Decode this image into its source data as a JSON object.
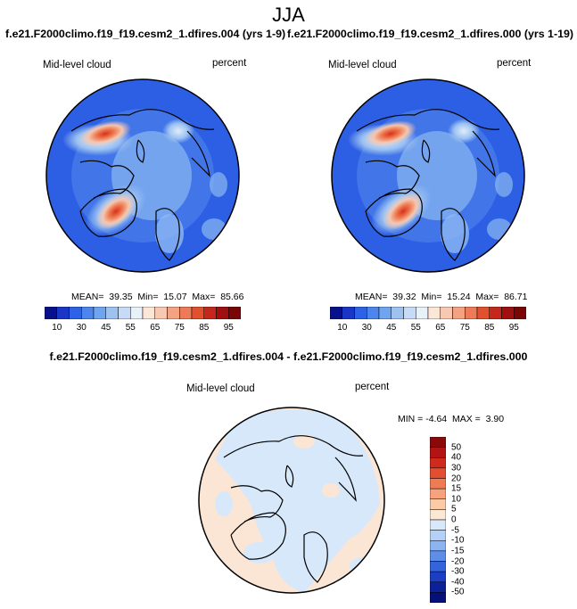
{
  "title": "JJA",
  "panels": {
    "left": {
      "case": "f.e21.F2000climo.f19_f19.cesm2_1.dfires.004 (yrs 1-9)",
      "variable": "Mid-level cloud",
      "units": "percent",
      "stats": "MEAN=  39.35  Min=  15.07  Max=  85.66"
    },
    "right": {
      "case": "f.e21.F2000climo.f19_f19.cesm2_1.dfires.000 (yrs 1-19)",
      "variable": "Mid-level cloud",
      "units": "percent",
      "stats": "MEAN=  39.32  Min=  15.24  Max=  86.71"
    },
    "diff": {
      "title": "f.e21.F2000climo.f19_f19.cesm2_1.dfires.004 - f.e21.F2000climo.f19_f19.cesm2_1.dfires.000",
      "variable": "Mid-level cloud",
      "units": "percent",
      "stats": "MIN = -4.64  MAX =  3.90"
    }
  },
  "colorbar_abs": {
    "labels": [
      "10",
      "30",
      "45",
      "55",
      "65",
      "75",
      "85",
      "95"
    ],
    "colors": [
      "#08108a",
      "#1a36c8",
      "#2e62e6",
      "#4a86ee",
      "#6fa4f0",
      "#9cc2f2",
      "#c6dcf6",
      "#e8f0fa",
      "#fbe6d8",
      "#f9c8b0",
      "#f4a282",
      "#ee7a58",
      "#e2502e",
      "#c4281a",
      "#a01010",
      "#780606"
    ]
  },
  "colorbar_diff": {
    "labels": [
      "50",
      "40",
      "30",
      "20",
      "15",
      "10",
      "5",
      "0",
      "-5",
      "-10",
      "-15",
      "-20",
      "-30",
      "-40",
      "-50"
    ],
    "colors": [
      "#8a0a0a",
      "#b21414",
      "#d02a1c",
      "#e44e30",
      "#f07a54",
      "#f6a27c",
      "#fbcba8",
      "#fde8d6",
      "#d8e8fa",
      "#b4d0f6",
      "#8cb4f0",
      "#5e8ee8",
      "#3464dc",
      "#1c3ec4",
      "#0c2098",
      "#06107a"
    ]
  },
  "map_colors": {
    "base_blue": "#2c5fe4",
    "light_blue": "#8cb8f2",
    "pale": "#e0ecfa",
    "orange": "#ef7a50",
    "red": "#d6301c",
    "diff_blue": "#d7e8fb",
    "diff_peach": "#fbe6d6"
  }
}
